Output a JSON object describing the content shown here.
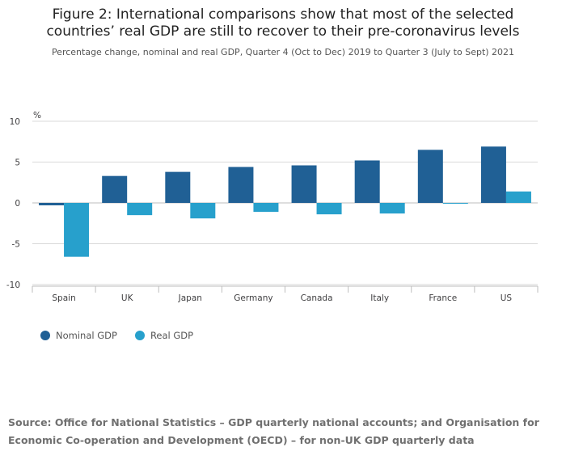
{
  "title_lines": [
    "Figure 2: International comparisons show that most of the selected",
    "countries’ real GDP are still to recover to their pre-coronavirus levels"
  ],
  "subtitle": "Percentage change, nominal and real GDP, Quarter 4 (Oct to Dec) 2019 to Quarter 3 (July to Sept) 2021",
  "source_lines": [
    "Source: Office for National Statistics – GDP quarterly national accounts;  and Organisation for",
    "Economic Co-operation and Development  (OECD) – for non-UK GDP quarterly data"
  ],
  "colors": {
    "nominal": "#206095",
    "real": "#27a0cc",
    "grid": "#d9d9d9",
    "axis": "#bebebe",
    "text": "#414042"
  },
  "chart_data": {
    "type": "bar",
    "categories": [
      "Spain",
      "UK",
      "Japan",
      "Germany",
      "Canada",
      "Italy",
      "France",
      "US"
    ],
    "series": [
      {
        "name": "Nominal GDP",
        "values": [
          -0.3,
          3.3,
          3.8,
          4.4,
          4.6,
          5.2,
          6.5,
          6.9
        ]
      },
      {
        "name": "Real GDP",
        "values": [
          -6.6,
          -1.5,
          -1.9,
          -1.1,
          -1.4,
          -1.3,
          -0.1,
          1.4
        ]
      }
    ],
    "ylim": [
      -10,
      10
    ],
    "yticks": [
      10,
      5,
      0,
      -5,
      -10
    ],
    "ylabel": "%",
    "grid": true,
    "legend": "bottom-left"
  }
}
